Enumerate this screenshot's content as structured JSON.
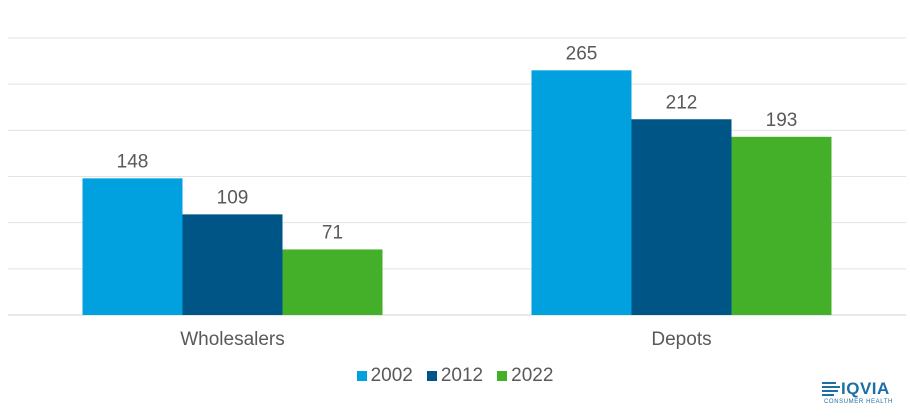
{
  "chart_data": {
    "type": "bar",
    "categories": [
      "Wholesalers",
      "Depots"
    ],
    "series": [
      {
        "name": "2002",
        "color": "#00a1de",
        "values": [
          148,
          265
        ]
      },
      {
        "name": "2012",
        "color": "#005587",
        "values": [
          109,
          212
        ]
      },
      {
        "name": "2022",
        "color": "#44b02a",
        "values": [
          71,
          193
        ]
      }
    ],
    "ylim": [
      0,
      300
    ],
    "grid": true,
    "legend_position": "bottom",
    "title": "",
    "xlabel": "",
    "ylabel": ""
  },
  "logo": {
    "word": "IQVIA",
    "sub": "CONSUMER HEALTH"
  }
}
